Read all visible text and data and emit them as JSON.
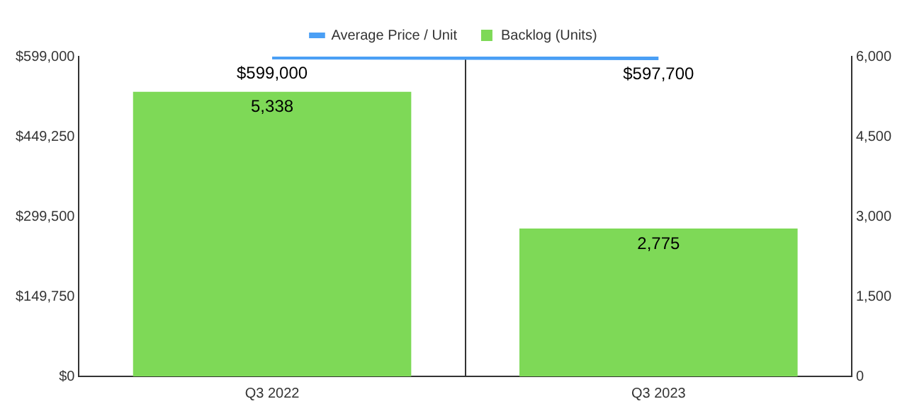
{
  "chart_data": {
    "type": "bar",
    "categories": [
      "Q3 2022",
      "Q3 2023"
    ],
    "series": [
      {
        "name": "Average Price / Unit",
        "type": "line",
        "axis": "y",
        "color": "#4a9ff5",
        "values": [
          599000,
          597700
        ],
        "value_labels": [
          "$599,000",
          "$597,700"
        ]
      },
      {
        "name": "Backlog (Units)",
        "type": "bar",
        "axis": "y2",
        "color": "#7ed957",
        "values": [
          5338,
          2775
        ],
        "value_labels": [
          "5,338",
          "2,775"
        ]
      }
    ],
    "ylim": [
      0,
      599000
    ],
    "yticks": [
      {
        "value": 0,
        "label": "$0"
      },
      {
        "value": 149750,
        "label": "$149,750"
      },
      {
        "value": 299500,
        "label": "$299,500"
      },
      {
        "value": 449250,
        "label": "$449,250"
      },
      {
        "value": 599000,
        "label": "$599,000"
      }
    ],
    "y2lim": [
      0,
      6000
    ],
    "y2ticks": [
      0,
      {
        "value": 1500,
        "label": "1,500"
      },
      {
        "value": 3000,
        "label": "3,000"
      },
      {
        "value": 4500,
        "label": "4,500"
      },
      {
        "value": 6000,
        "label": "6,000"
      }
    ],
    "grid": "x",
    "legend": "top"
  }
}
